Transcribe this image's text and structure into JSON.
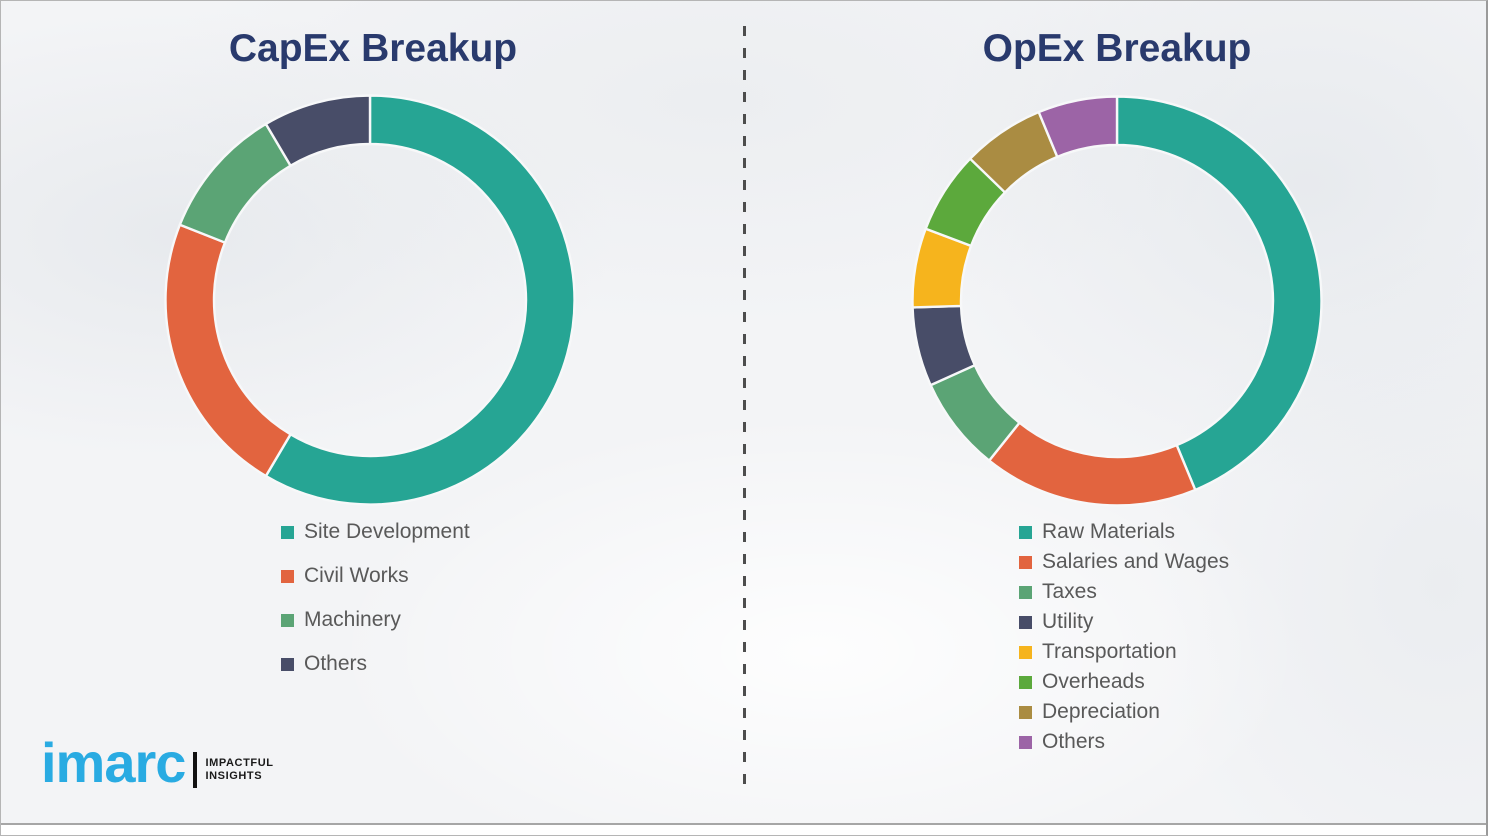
{
  "page": {
    "left_title": "CapEx Breakup",
    "right_title": "OpEx Breakup"
  },
  "logo": {
    "wordmark": "imarc",
    "tagline_line1": "IMPACTFUL",
    "tagline_line2": "INSIGHTS",
    "brand_color": "#29abe2"
  },
  "colors": {
    "title_text": "#293a6d",
    "legend_text": "#595959",
    "divider_dash": "#4d4d4d",
    "bottom_rule": "#a6a6a6",
    "segment_gap": "#f7f8f9"
  },
  "chart_data": [
    {
      "type": "pie",
      "variant": "donut",
      "title": "CapEx Breakup",
      "unit": "percent",
      "start_angle_deg": 0,
      "direction": "clockwise",
      "legend_position": "below",
      "series": [
        {
          "label": "Site Development",
          "value": 58.5,
          "color": "#26a594"
        },
        {
          "label": "Civil Works",
          "value": 22.5,
          "color": "#e2643f"
        },
        {
          "label": "Machinery",
          "value": 10.5,
          "color": "#5ba475"
        },
        {
          "label": "Others",
          "value": 8.5,
          "color": "#484d68"
        }
      ]
    },
    {
      "type": "pie",
      "variant": "donut",
      "title": "OpEx Breakup",
      "unit": "percent",
      "start_angle_deg": 0,
      "direction": "clockwise",
      "legend_position": "below",
      "series": [
        {
          "label": "Raw Materials",
          "value": 43.75,
          "color": "#26a594"
        },
        {
          "label": "Salaries and Wages",
          "value": 17.0,
          "color": "#e2643f"
        },
        {
          "label": "Taxes",
          "value": 7.5,
          "color": "#5ba475"
        },
        {
          "label": "Utility",
          "value": 6.25,
          "color": "#484d68"
        },
        {
          "label": "Transportation",
          "value": 6.25,
          "color": "#f6b41d"
        },
        {
          "label": "Overheads",
          "value": 6.5,
          "color": "#5ca93c"
        },
        {
          "label": "Depreciation",
          "value": 6.5,
          "color": "#aa8c42"
        },
        {
          "label": "Others",
          "value": 6.25,
          "color": "#9c64a6"
        }
      ]
    }
  ]
}
